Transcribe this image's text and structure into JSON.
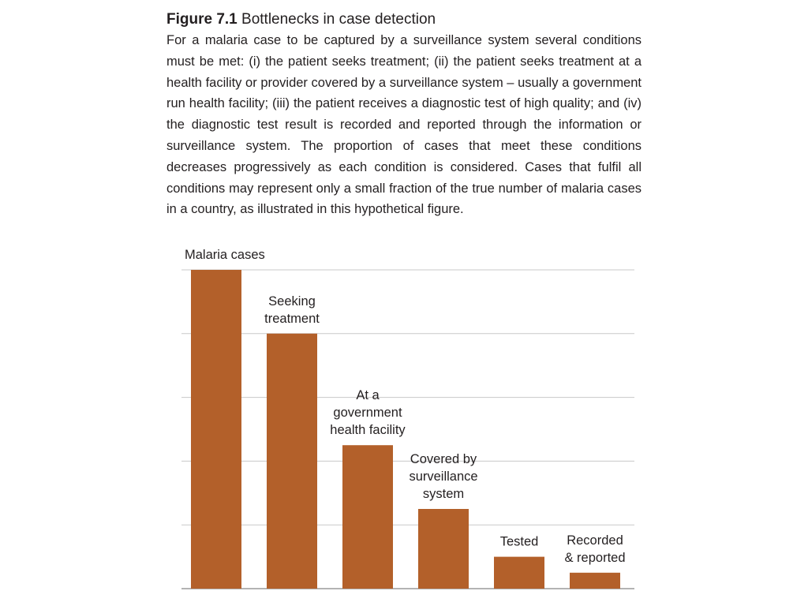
{
  "figure": {
    "number": "Figure 7.1",
    "title": "Bottlenecks in case detection",
    "description": "For a malaria case to be captured by a surveillance system several conditions must be met: (i) the patient seeks treatment; (ii) the patient seeks treatment at a health facility or provider covered by a surveillance system – usually a gov­ernment run health facility; (iii) the patient receives a diagnostic test of high quality; and (iv) the diagnostic test result is recorded and reported through the information or surveillance system. The proportion of cases that meet these conditions decreases progressively as each condition is considered. Cases that fulfil all conditions may represent only a small fraction of the true number of malaria cases in a country, as illustrated in this hypothetical figure."
  },
  "colors": {
    "bar": "#b3602a",
    "grid": "#c8c8c8",
    "axis": "#9a9a9a",
    "text": "#231f20"
  },
  "chart_data": {
    "type": "bar",
    "title": "",
    "xlabel": "",
    "ylabel": "",
    "ylim": [
      0,
      100
    ],
    "grid": true,
    "legend": "none",
    "categories": [
      [
        "Malaria cases"
      ],
      [
        "Seeking",
        "treatment"
      ],
      [
        "At a",
        "government",
        "health facility"
      ],
      [
        "Covered by",
        "surveillance",
        "system"
      ],
      [
        "Tested"
      ],
      [
        "Recorded",
        "& reported"
      ]
    ],
    "values": [
      100,
      80,
      45,
      25,
      10,
      5
    ]
  }
}
